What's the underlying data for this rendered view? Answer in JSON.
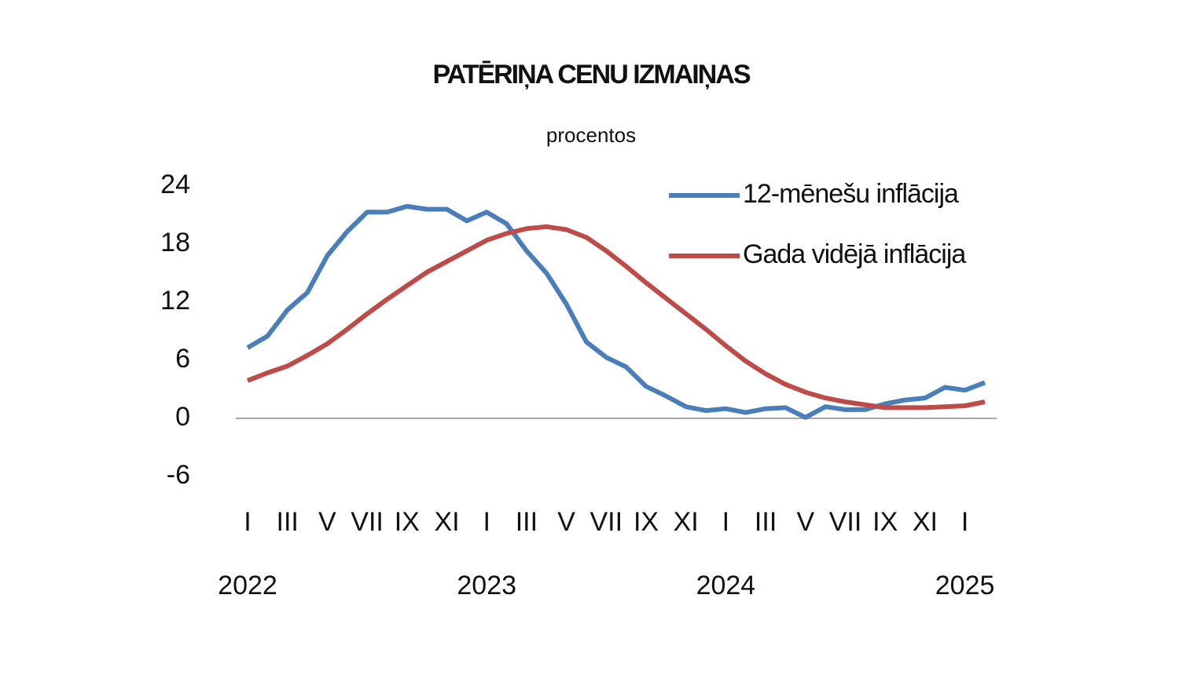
{
  "chart_data": {
    "type": "line",
    "title": "PATĒRIŅA CENU IZMAIŅAS",
    "subtitle": "procentos",
    "categories": [
      "I",
      null,
      "III",
      null,
      "V",
      null,
      "VII",
      null,
      "IX",
      null,
      "XI",
      null,
      "I",
      null,
      "III",
      null,
      "V",
      null,
      "VII",
      null,
      "IX",
      null,
      "XI",
      null,
      "I",
      null,
      "III",
      null,
      "V",
      null,
      "VII",
      null,
      "IX",
      null,
      "XI",
      null,
      "I",
      null
    ],
    "year_labels": [
      "2022",
      "2023",
      "2024",
      "2025"
    ],
    "series": [
      {
        "name": "12-mēnešu inflācija",
        "color": "#4a7ebb",
        "values": [
          7.3,
          8.5,
          11.2,
          13.0,
          16.8,
          19.3,
          21.3,
          21.3,
          21.9,
          21.6,
          21.6,
          20.4,
          21.3,
          20.1,
          17.3,
          15.0,
          11.8,
          7.9,
          6.3,
          5.3,
          3.3,
          2.3,
          1.2,
          0.8,
          1.0,
          0.6,
          1.0,
          1.1,
          0.1,
          1.2,
          0.9,
          0.9,
          1.5,
          1.9,
          2.1,
          3.2,
          2.9,
          3.7
        ]
      },
      {
        "name": "Gada vidējā inflācija",
        "color": "#be4b48",
        "values": [
          3.9,
          4.7,
          5.4,
          6.5,
          7.7,
          9.2,
          10.8,
          12.3,
          13.7,
          15.1,
          16.2,
          17.3,
          18.4,
          19.1,
          19.6,
          19.8,
          19.5,
          18.7,
          17.3,
          15.7,
          14.0,
          12.4,
          10.8,
          9.2,
          7.5,
          5.9,
          4.6,
          3.5,
          2.7,
          2.1,
          1.7,
          1.4,
          1.1,
          1.1,
          1.1,
          1.2,
          1.3,
          1.7
        ]
      }
    ],
    "ylim": [
      -6,
      24
    ],
    "yticks": [
      -6,
      0,
      6,
      12,
      18,
      24
    ],
    "legend": "top-right"
  }
}
